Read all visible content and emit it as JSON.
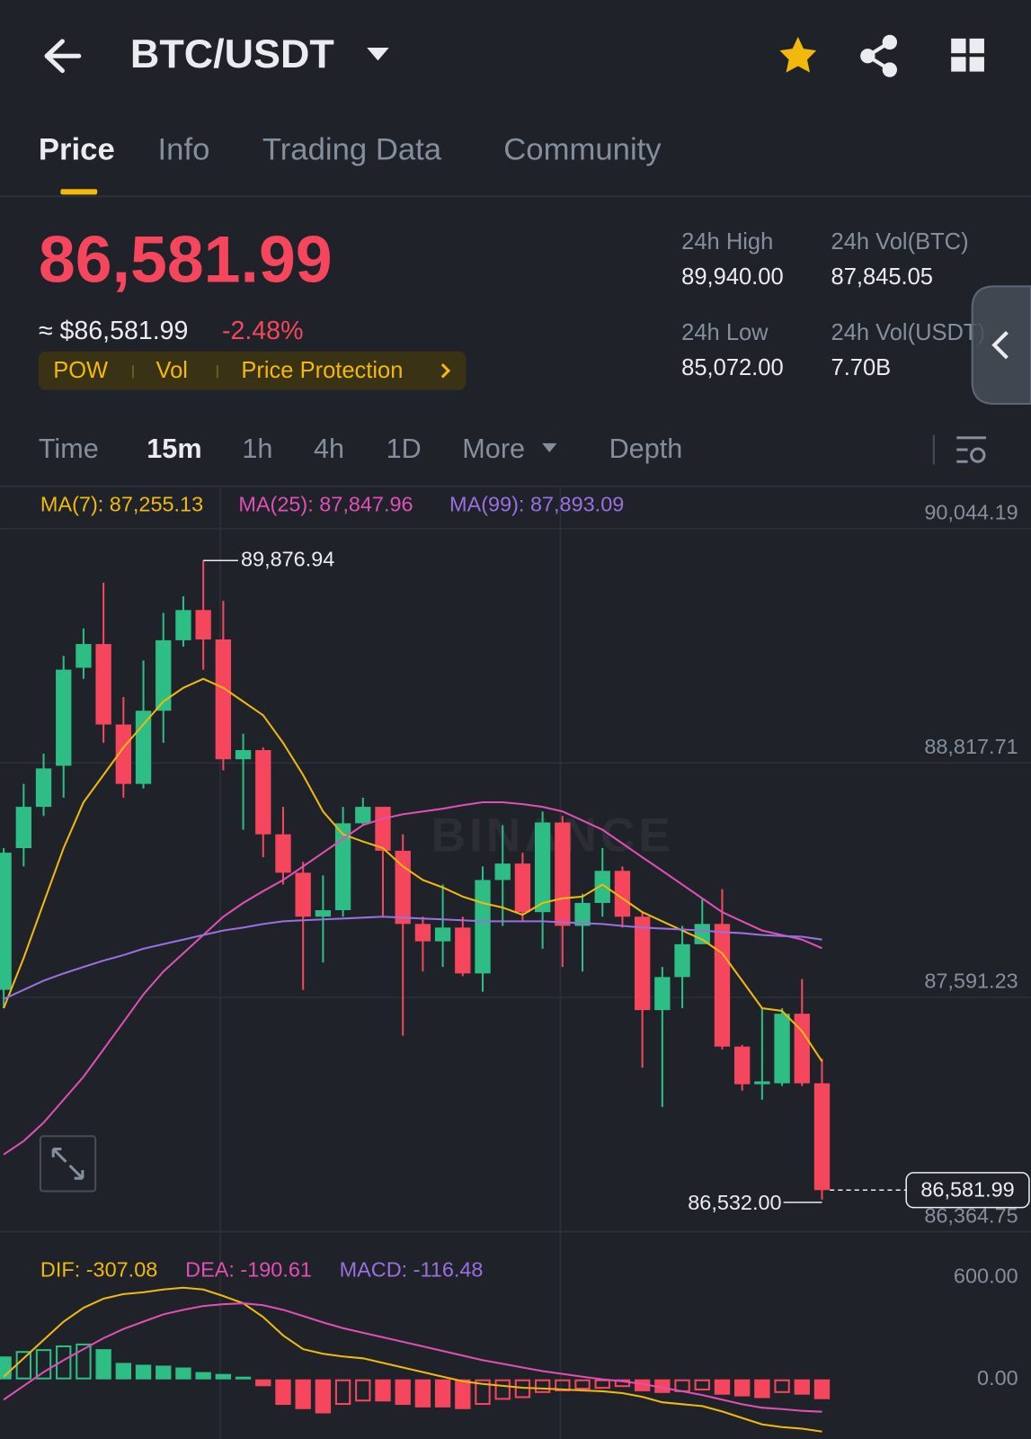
{
  "header": {
    "pair": "BTC/USDT"
  },
  "tabs": [
    "Price",
    "Info",
    "Trading Data",
    "Community"
  ],
  "price": {
    "last": "86,581.99",
    "approx": "≈ $86,581.99",
    "change": "-2.48%"
  },
  "tags": [
    "POW",
    "Vol",
    "Price Protection"
  ],
  "stats": [
    {
      "label": "24h High",
      "value": "89,940.00"
    },
    {
      "label": "24h Vol(BTC)",
      "value": "87,845.05"
    },
    {
      "label": "24h Low",
      "value": "85,072.00"
    },
    {
      "label": "24h Vol(USDT)",
      "value": "7.70B"
    }
  ],
  "intervals": [
    "Time",
    "15m",
    "1h",
    "4h",
    "1D",
    "More",
    "Depth"
  ],
  "chart_data": [
    {
      "type": "candlestick",
      "watermark": "BINANCE",
      "up_color": "#2ebd85",
      "down_color": "#f6465d",
      "open": [
        87630,
        88372,
        88588,
        88803,
        89316,
        89440,
        89019,
        88708,
        89091,
        89460,
        89618,
        89464,
        88837,
        88885,
        88444,
        88243,
        88013,
        88047,
        88502,
        88588,
        88358,
        87975,
        87884,
        87956,
        87716,
        88205,
        88291,
        88037,
        88506,
        87965,
        88085,
        88253,
        88013,
        87524,
        87697,
        87869,
        87975,
        87333,
        87136,
        87141,
        87505,
        87141
      ],
      "high": [
        88372,
        88708,
        88866,
        89378,
        89522,
        89761,
        89163,
        89354,
        89603,
        89690,
        89876.94,
        89666,
        88971,
        88899,
        88588,
        88300,
        88229,
        88588,
        88636,
        88588,
        88444,
        88013,
        88181,
        88013,
        88276,
        88492,
        88348,
        88564,
        88540,
        88133,
        88372,
        88276,
        88037,
        87750,
        87965,
        88109,
        88157,
        87342,
        87534,
        87534,
        87687,
        87270
      ],
      "low": [
        87534,
        88276,
        88540,
        88636,
        89258,
        88923,
        88636,
        88684,
        88923,
        89426,
        89306,
        88779,
        88468,
        88324,
        88181,
        87630,
        87773,
        88013,
        88492,
        88013,
        87390,
        87726,
        87750,
        87702,
        87620,
        87965,
        87989,
        87845,
        87750,
        87726,
        88013,
        87956,
        87223,
        87017,
        87534,
        87869,
        87318,
        87103,
        87055,
        87127,
        87127,
        86532
      ],
      "close": [
        88348,
        88588,
        88789,
        89306,
        89440,
        89019,
        88708,
        89091,
        89460,
        89618,
        89464,
        88837,
        88885,
        88444,
        88243,
        88013,
        88047,
        88502,
        88588,
        88358,
        87975,
        87884,
        87956,
        87716,
        88205,
        88291,
        88037,
        88506,
        87965,
        88085,
        88253,
        88013,
        87524,
        87697,
        87869,
        87975,
        87333,
        87136,
        87151,
        87505,
        87141,
        86581.99
      ],
      "series": [
        {
          "label": "MA(7): 87,255.13",
          "color": "#f0b90b",
          "values": [
            87534,
            87797,
            88085,
            88372,
            88612,
            88755,
            88899,
            89019,
            89139,
            89211,
            89258,
            89211,
            89139,
            89067,
            88923,
            88755,
            88564,
            88444,
            88406,
            88372,
            88276,
            88205,
            88166,
            88118,
            88085,
            88061,
            88023,
            88085,
            88109,
            88118,
            88181,
            88109,
            88037,
            87989,
            87941,
            87893,
            87821,
            87678,
            87534,
            87520,
            87414,
            87255.13
          ]
        },
        {
          "label": "MA(25): 87,847.96",
          "color": "#e04fb5",
          "values": [
            86768,
            86839,
            86935,
            87055,
            87175,
            87318,
            87462,
            87606,
            87726,
            87821,
            87917,
            88013,
            88085,
            88147,
            88205,
            88276,
            88348,
            88420,
            88492,
            88526,
            88549,
            88564,
            88578,
            88597,
            88612,
            88612,
            88602,
            88588,
            88564,
            88516,
            88468,
            88396,
            88324,
            88253,
            88181,
            88109,
            88037,
            87989,
            87941,
            87917,
            87893,
            87847.96
          ]
        },
        {
          "label": "MA(99): 87,893.09",
          "color": "#9a6fe0",
          "values": [
            87582,
            87630,
            87678,
            87716,
            87750,
            87783,
            87812,
            87845,
            87869,
            87893,
            87917,
            87941,
            87956,
            87975,
            87989,
            87994,
            87999,
            88003,
            88008,
            88013,
            88008,
            88003,
            87999,
            87994,
            87989,
            87989,
            87989,
            87989,
            87984,
            87979,
            87975,
            87965,
            87956,
            87951,
            87946,
            87941,
            87932,
            87927,
            87917,
            87912,
            87908,
            87893.09
          ]
        }
      ],
      "high_label": "89,876.94",
      "low_label": "86,532.00",
      "last_price_label": "86,581.99",
      "ylim": [
        86364.75,
        90044.19
      ],
      "yticks": [
        {
          "value": 90044.19,
          "label": "90,044.19"
        },
        {
          "value": 88817.71,
          "label": "88,817.71"
        },
        {
          "value": 87591.23,
          "label": "87,591.23"
        },
        {
          "value": 86364.75,
          "label": "86,364.75"
        }
      ],
      "grid": true
    },
    {
      "type": "macd",
      "up_color": "#2ebd85",
      "down_color": "#f6465d",
      "series": [
        {
          "label": "DIF: -307.08",
          "color": "#f0b90b",
          "values": [
            16,
            124,
            232,
            340,
            421,
            475,
            502,
            513,
            529,
            540,
            529,
            491,
            448,
            367,
            259,
            178,
            151,
            135,
            124,
            97,
            70,
            43,
            16,
            -11,
            -27,
            -38,
            -49,
            -54,
            -59,
            -65,
            -70,
            -81,
            -103,
            -135,
            -146,
            -157,
            -189,
            -227,
            -265,
            -281,
            -290,
            -307.08
          ]
        },
        {
          "label": "DEA: -190.61",
          "color": "#e04fb5",
          "values": [
            -119,
            -38,
            43,
            113,
            178,
            243,
            297,
            340,
            383,
            410,
            432,
            443,
            448,
            437,
            410,
            373,
            335,
            302,
            275,
            248,
            221,
            194,
            167,
            140,
            113,
            92,
            70,
            49,
            32,
            16,
            0,
            -11,
            -27,
            -49,
            -70,
            -92,
            -119,
            -146,
            -167,
            -175,
            -185,
            -190.61
          ]
        }
      ],
      "histogram": {
        "label": "MACD: -116.48",
        "color": "#9a6fe0",
        "values": [
          135,
          167,
          178,
          200,
          211,
          178,
          97,
          86,
          81,
          70,
          43,
          32,
          16,
          -40,
          -150,
          -175,
          -200,
          -150,
          -130,
          -130,
          -150,
          -165,
          -165,
          -175,
          -150,
          -120,
          -110,
          -80,
          -70,
          -60,
          -55,
          -45,
          -70,
          -80,
          -75,
          -65,
          -90,
          -100,
          -110,
          -80,
          -90,
          -116.48
        ]
      },
      "ylim": [
        -351,
        854
      ],
      "yticks": [
        {
          "value": 600,
          "label": "600.00"
        },
        {
          "value": 0,
          "label": "0.00"
        }
      ],
      "grid": false
    }
  ]
}
